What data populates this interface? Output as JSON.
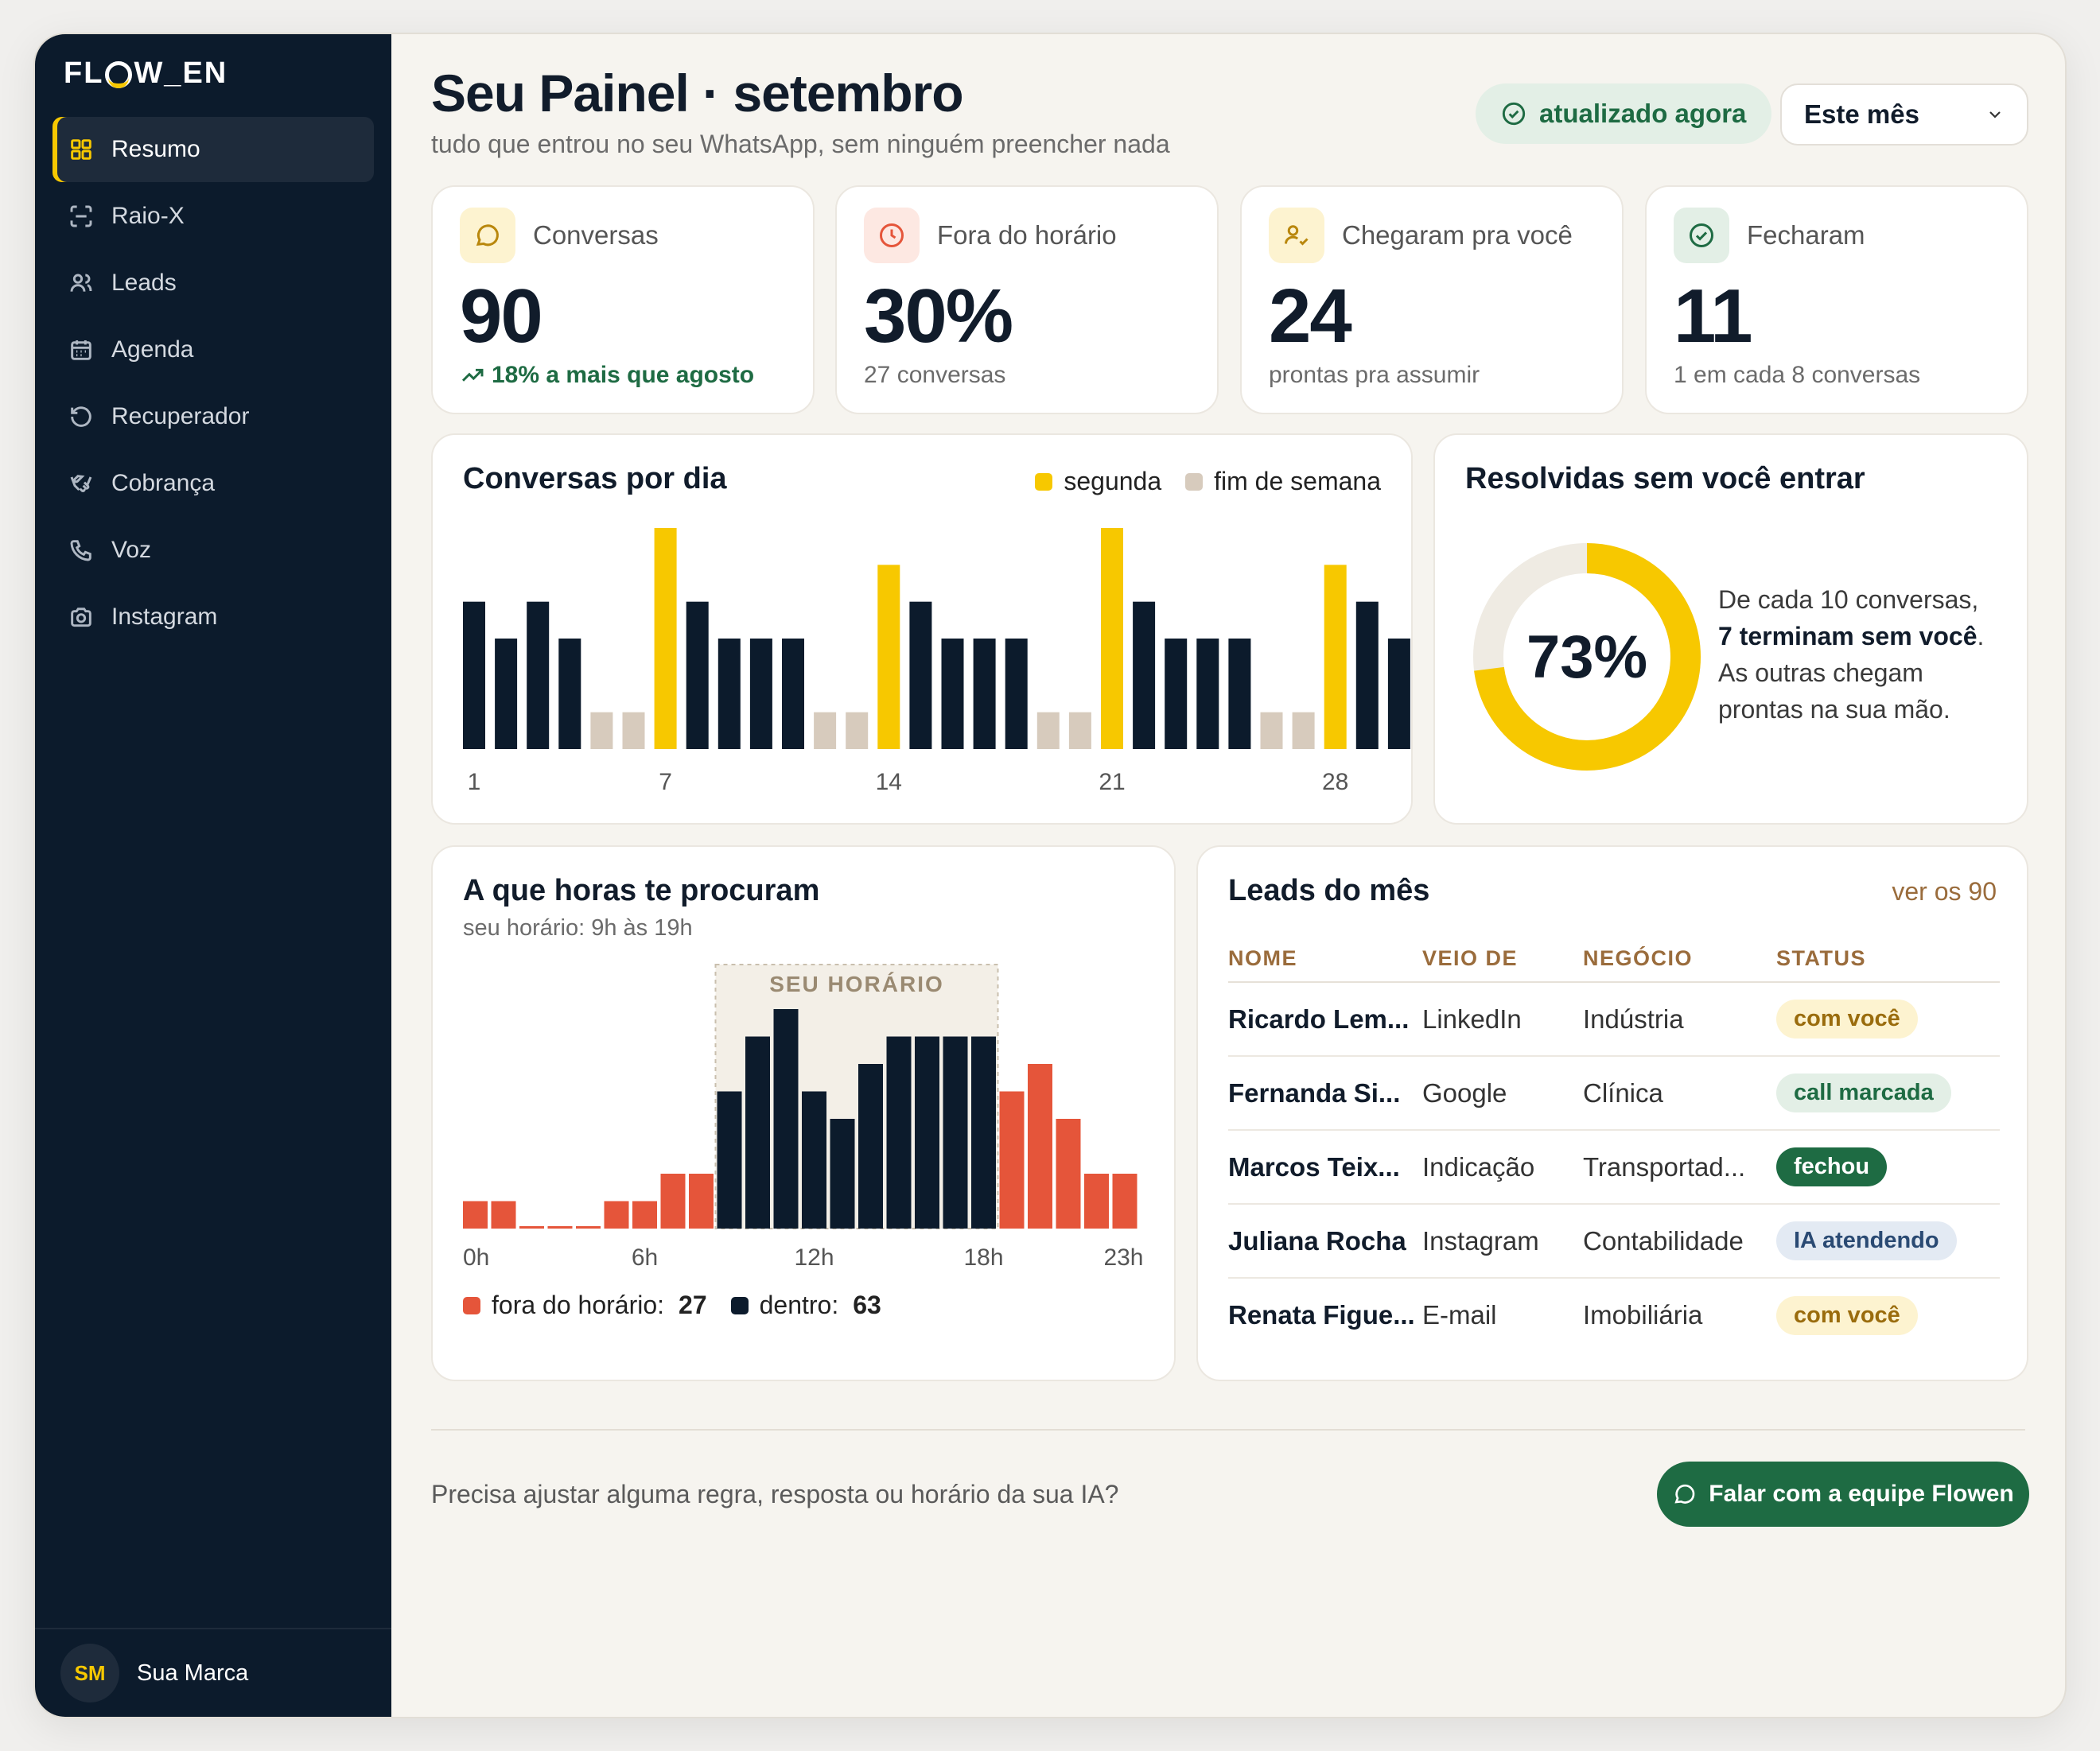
{
  "app": {
    "logo": "FLOW_EN"
  },
  "sidebar": {
    "items": [
      {
        "label": "Resumo",
        "icon": "grid-icon",
        "active": true
      },
      {
        "label": "Raio-X",
        "icon": "scan-icon"
      },
      {
        "label": "Leads",
        "icon": "users-icon"
      },
      {
        "label": "Agenda",
        "icon": "calendar-icon"
      },
      {
        "label": "Recuperador",
        "icon": "rotate-icon"
      },
      {
        "label": "Cobrança",
        "icon": "handshake-icon"
      },
      {
        "label": "Voz",
        "icon": "phone-icon"
      },
      {
        "label": "Instagram",
        "icon": "camera-icon"
      }
    ],
    "user": {
      "initials": "SM",
      "name": "Sua Marca"
    }
  },
  "header": {
    "title": "Seu Painel · setembro",
    "subtitle": "tudo que entrou no seu WhatsApp, sem ninguém preencher nada",
    "status": "atualizado agora",
    "period": "Este mês"
  },
  "kpis": [
    {
      "label": "Conversas",
      "value": "90",
      "foot": "18% a mais que agosto",
      "icon": "chat-icon"
    },
    {
      "label": "Fora do horário",
      "value": "30%",
      "foot": "27 conversas",
      "icon": "clock-icon"
    },
    {
      "label": "Chegaram pra você",
      "value": "24",
      "foot": "prontas pra assumir",
      "icon": "user-check-icon"
    },
    {
      "label": "Fecharam",
      "value": "11",
      "foot": "1 em cada 8 conversas",
      "icon": "check-circle-icon"
    }
  ],
  "daily_chart": {
    "title": "Conversas por dia",
    "legend": {
      "monday": "segunda",
      "weekend": "fim de semana"
    }
  },
  "donut": {
    "title": "Resolvidas sem você entrar",
    "value_label": "73%",
    "text_1": "De cada 10 conversas,",
    "text_bold": "7 terminam sem você",
    "text_2": ".",
    "text_3": "As outras chegam prontas na sua mão."
  },
  "hours": {
    "title": "A que horas te procuram",
    "subtitle": "seu horário: 9h às 19h",
    "band_label": "SEU HORÁRIO",
    "legend_out": "fora do horário:",
    "legend_out_value": "27",
    "legend_in": "dentro:",
    "legend_in_value": "63"
  },
  "leads": {
    "title": "Leads do mês",
    "see_all": "ver os 90",
    "columns": [
      "NOME",
      "VEIO DE",
      "NEGÓCIO",
      "STATUS"
    ],
    "rows": [
      {
        "name": "Ricardo Lem...",
        "source": "LinkedIn",
        "business": "Indústria",
        "status": "com você",
        "status_type": "yellow"
      },
      {
        "name": "Fernanda Si...",
        "source": "Google",
        "business": "Clínica",
        "status": "call marcada",
        "status_type": "green-light"
      },
      {
        "name": "Marcos Teix...",
        "source": "Indicação",
        "business": "Transportad...",
        "status": "fechou",
        "status_type": "green"
      },
      {
        "name": "Juliana Rocha",
        "source": "Instagram",
        "business": "Contabilidade",
        "status": "IA atendendo",
        "status_type": "blue"
      },
      {
        "name": "Renata Figue...",
        "source": "E-mail",
        "business": "Imobiliária",
        "status": "com você",
        "status_type": "yellow"
      }
    ]
  },
  "footer": {
    "help": "Precisa ajustar alguma regra, resposta ou horário da sua IA?",
    "cta": "Falar com a equipe Flowen"
  },
  "colors": {
    "navy": "#0c1b2c",
    "yellow": "#f7c800",
    "weekend": "#d7cbbd",
    "orange": "#e5553a",
    "green": "#1e6b43"
  },
  "chart_data": [
    {
      "type": "bar",
      "title": "Conversas por dia",
      "x": [
        1,
        2,
        3,
        4,
        5,
        6,
        7,
        8,
        9,
        10,
        11,
        12,
        13,
        14,
        15,
        16,
        17,
        18,
        19,
        20,
        21,
        22,
        23,
        24,
        25,
        26,
        27,
        28,
        29,
        30
      ],
      "values": [
        4,
        3,
        4,
        3,
        1,
        1,
        6,
        4,
        3,
        3,
        3,
        1,
        1,
        5,
        4,
        3,
        3,
        3,
        1,
        1,
        6,
        4,
        3,
        3,
        3,
        1,
        1,
        5,
        4,
        3
      ],
      "day_type": [
        "w",
        "w",
        "w",
        "w",
        "e",
        "e",
        "m",
        "w",
        "w",
        "w",
        "w",
        "e",
        "e",
        "m",
        "w",
        "w",
        "w",
        "w",
        "e",
        "e",
        "m",
        "w",
        "w",
        "w",
        "w",
        "e",
        "e",
        "m",
        "w",
        "w"
      ],
      "series": [
        {
          "name": "segunda"
        },
        {
          "name": "fim de semana"
        }
      ],
      "x_ticks": [
        "1",
        "7",
        "14",
        "21",
        "28"
      ],
      "ylim": [
        0,
        6
      ]
    },
    {
      "type": "pie",
      "title": "Resolvidas sem você entrar",
      "slices": [
        {
          "label": "resolvidas",
          "value": 73
        },
        {
          "label": "outras",
          "value": 27
        }
      ]
    },
    {
      "type": "bar",
      "title": "A que horas te procuram",
      "categories": [
        "0",
        "1",
        "2",
        "3",
        "4",
        "5",
        "6",
        "7",
        "8",
        "9",
        "10",
        "11",
        "12",
        "13",
        "14",
        "15",
        "16",
        "17",
        "18",
        "19",
        "20",
        "21",
        "22",
        "23"
      ],
      "values": [
        1,
        1,
        0,
        0,
        0,
        1,
        1,
        2,
        2,
        5,
        7,
        8,
        5,
        4,
        6,
        7,
        7,
        7,
        7,
        5,
        6,
        4,
        2,
        2
      ],
      "in_hours": [
        false,
        false,
        false,
        false,
        false,
        false,
        false,
        false,
        false,
        true,
        true,
        true,
        true,
        true,
        true,
        true,
        true,
        true,
        true,
        false,
        false,
        false,
        false,
        false
      ],
      "x_ticks": [
        "0h",
        "6h",
        "12h",
        "18h",
        "23h"
      ],
      "series": [
        {
          "name": "fora do horário",
          "total": 27
        },
        {
          "name": "dentro",
          "total": 63
        }
      ],
      "ylim": [
        0,
        8
      ]
    }
  ]
}
